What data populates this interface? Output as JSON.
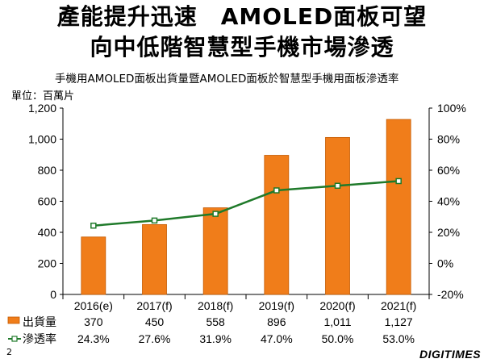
{
  "title_line1": "產能提升迅速　AMOLED面板可望",
  "title_line2": "向中低階智慧型手機市場滲透",
  "page_number": "2",
  "logo_text": "DIGITIMES",
  "colors": {
    "bar": "#f07d1a",
    "bar_edge": "#c45a00",
    "line": "#1f7a2a",
    "marker_fill": "#ffffff"
  },
  "chart_data": {
    "type": "bar",
    "title": "手機用AMOLED面板出貨量暨AMOLED面板於智慧型手機用面板滲透率",
    "unit_label": "單位：百萬片",
    "categories": [
      "2016(e)",
      "2017(f)",
      "2018(f)",
      "2019(f)",
      "2020(f)",
      "2021(f)"
    ],
    "y_left_ticks": [
      "0",
      "200",
      "400",
      "600",
      "800",
      "1,000",
      "1,200"
    ],
    "y_left_range": [
      0,
      1200
    ],
    "y_right_ticks": [
      "-20%",
      "0%",
      "20%",
      "40%",
      "60%",
      "80%",
      "100%"
    ],
    "y_right_range": [
      -20,
      100
    ],
    "legend_position": "bottom-table",
    "series": [
      {
        "name": "出貨量",
        "type": "bar",
        "axis": "left",
        "values": [
          370,
          450,
          558,
          896,
          1011,
          1127
        ],
        "labels": [
          "370",
          "450",
          "558",
          "896",
          "1,011",
          "1,127"
        ]
      },
      {
        "name": "滲透率",
        "type": "line",
        "axis": "right",
        "values": [
          24.3,
          27.6,
          31.9,
          47.0,
          50.0,
          53.0
        ],
        "labels": [
          "24.3%",
          "27.6%",
          "31.9%",
          "47.0%",
          "50.0%",
          "53.0%"
        ]
      }
    ]
  }
}
